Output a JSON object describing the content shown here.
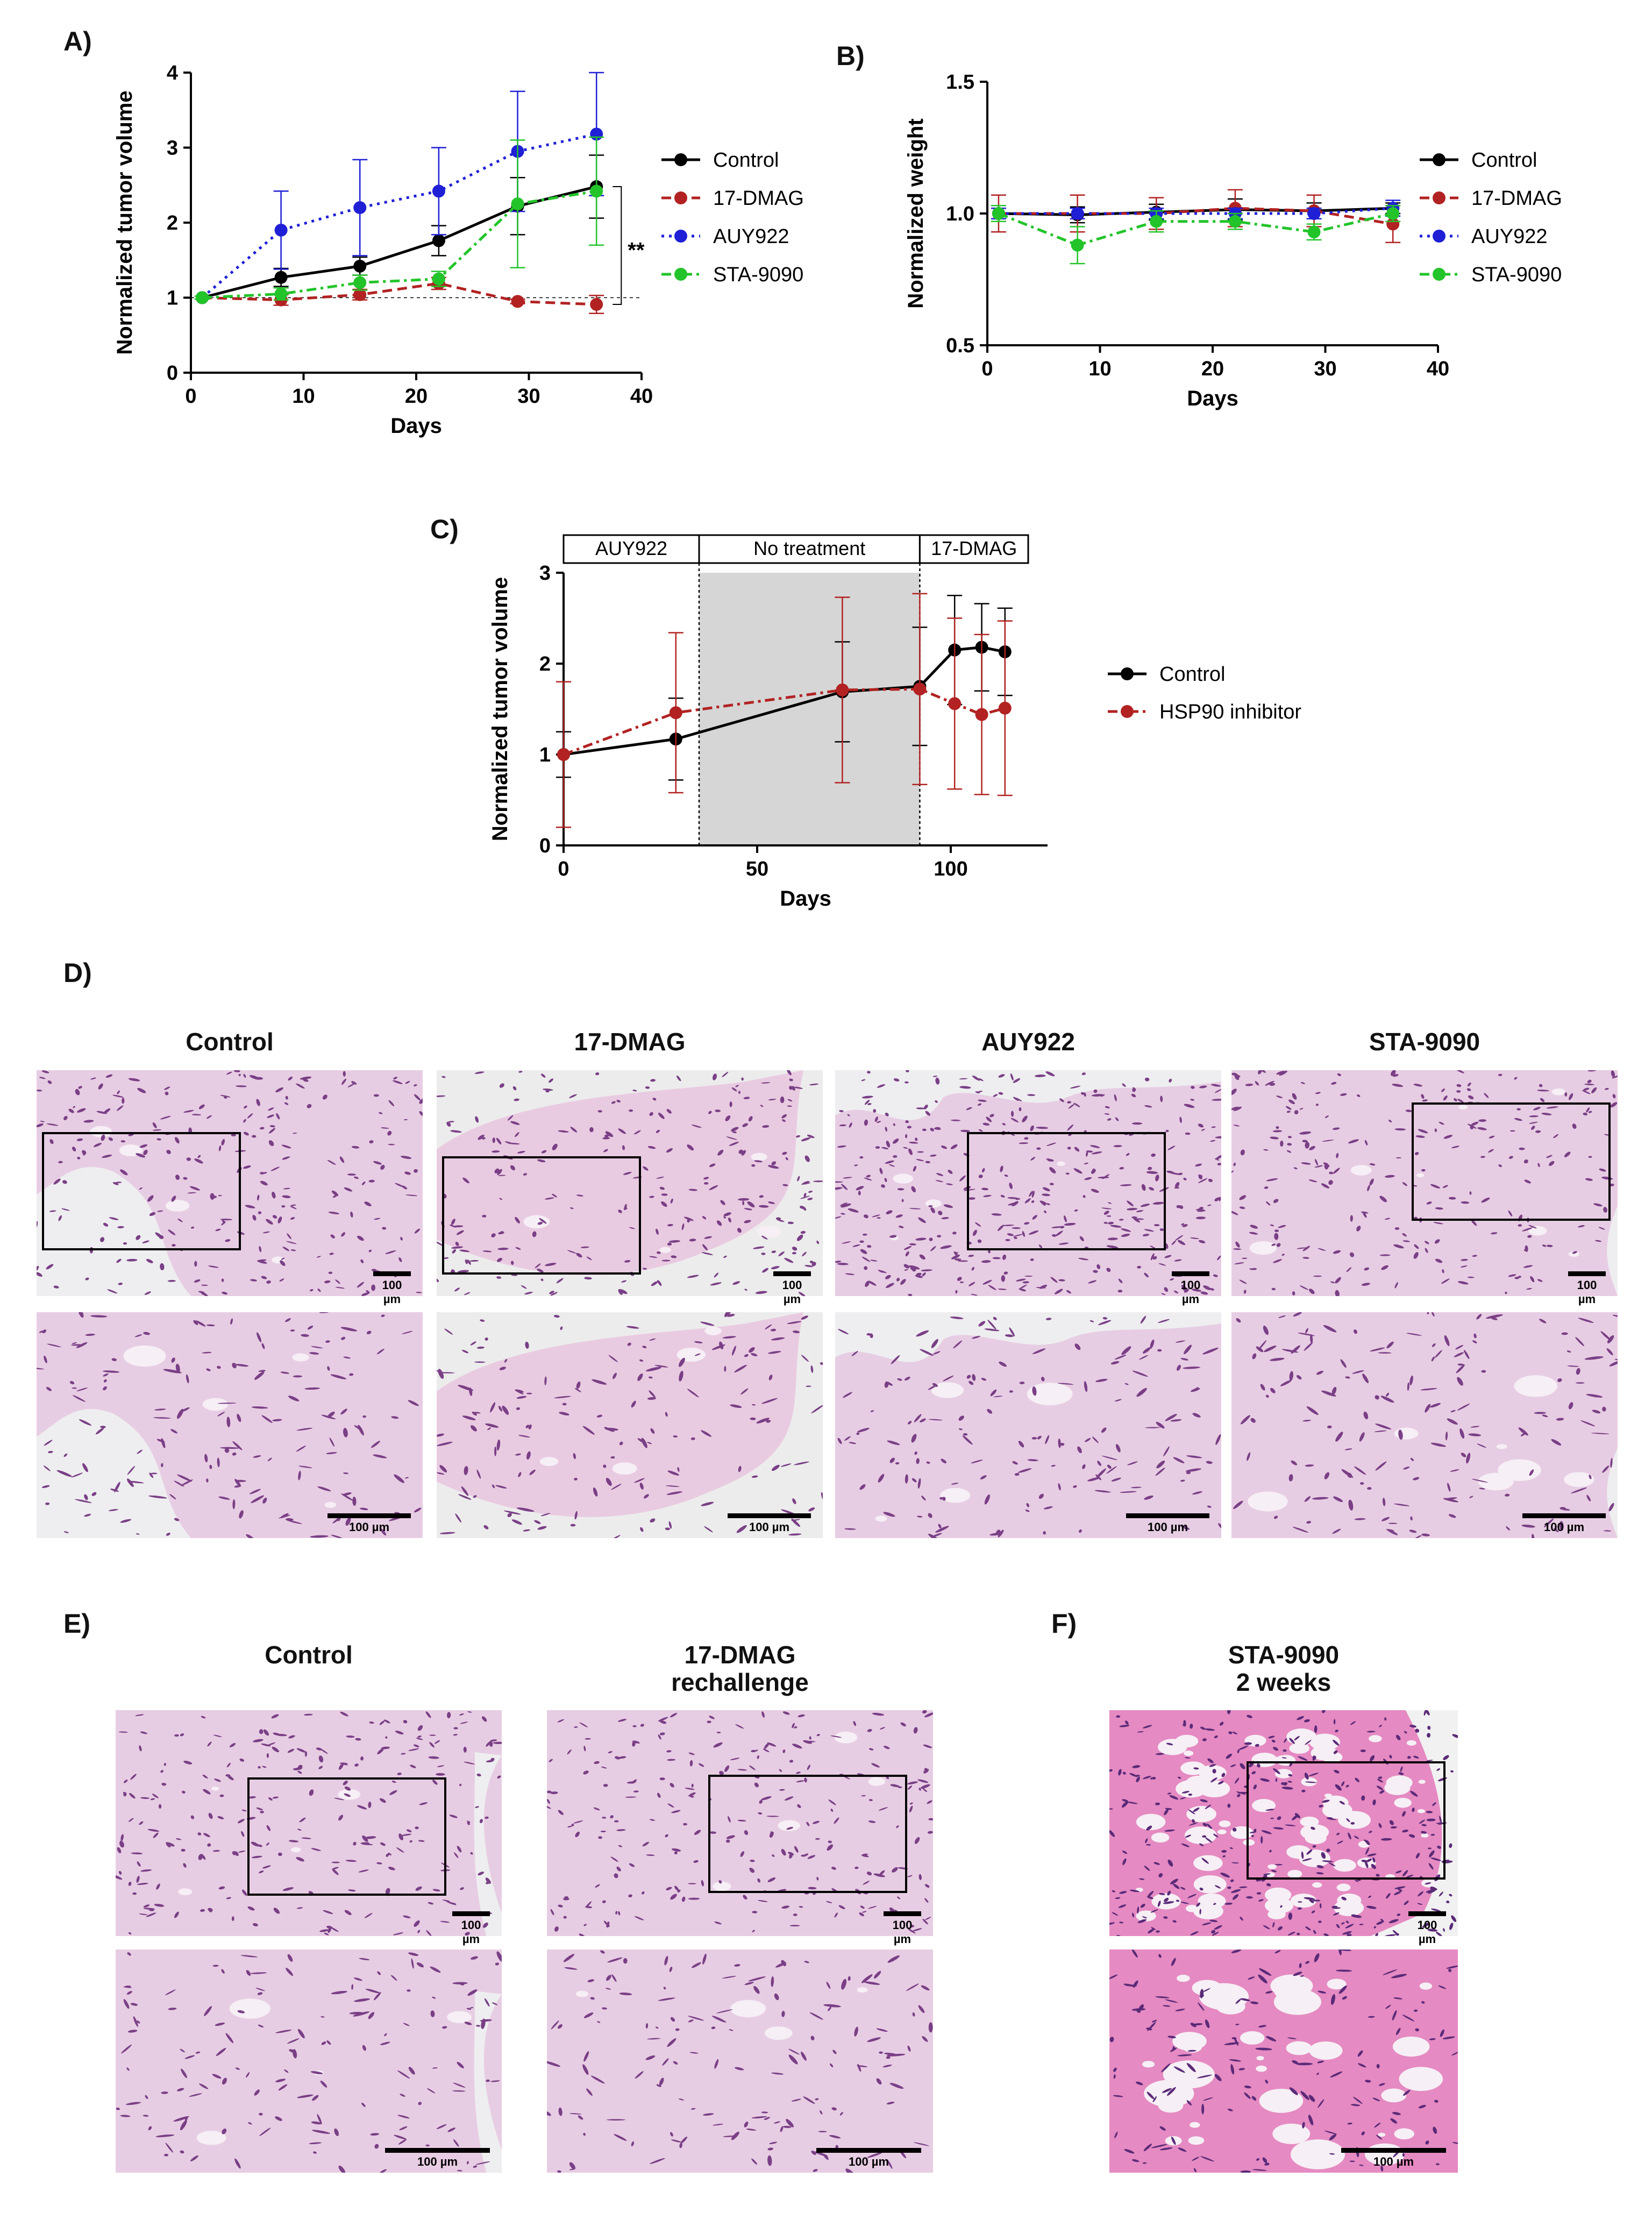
{
  "panels": {
    "A": "A)",
    "B": "B)",
    "C": "C)",
    "D": "D)",
    "E": "E)",
    "F": "F)"
  },
  "colors": {
    "control": "#000000",
    "dmag": "#b22222",
    "auy": "#1f1fd6",
    "sta": "#22c42a",
    "hsp90": "#b22222",
    "shade": "#d6d6d6"
  },
  "chart_data": [
    {
      "id": "A",
      "type": "line",
      "xlabel": "Days",
      "ylabel": "Normalized tumor volume",
      "xlim": [
        0,
        40
      ],
      "ylim": [
        0,
        4
      ],
      "xticks": [
        0,
        10,
        20,
        30,
        40
      ],
      "yticks": [
        0,
        1,
        2,
        3,
        4
      ],
      "reference_line_y": 1,
      "legend_position": "right",
      "significance": "**",
      "series": [
        {
          "name": "Control",
          "color": "#000000",
          "dash": "solid",
          "x": [
            1,
            8,
            15,
            22,
            29,
            36
          ],
          "y": [
            1.0,
            1.27,
            1.42,
            1.76,
            2.22,
            2.48
          ],
          "err": [
            0.02,
            0.12,
            0.12,
            0.2,
            0.38,
            0.42
          ]
        },
        {
          "name": "17-DMAG",
          "color": "#b22222",
          "dash": "dash",
          "x": [
            1,
            8,
            15,
            22,
            29,
            36
          ],
          "y": [
            1.0,
            0.97,
            1.04,
            1.19,
            0.95,
            0.91
          ],
          "err": [
            0.02,
            0.07,
            0.07,
            0.08,
            0.03,
            0.12
          ]
        },
        {
          "name": "AUY922",
          "color": "#1f1fd6",
          "dash": "dot",
          "x": [
            1,
            8,
            15,
            22,
            29,
            36
          ],
          "y": [
            1.0,
            1.9,
            2.2,
            2.42,
            2.95,
            3.18
          ],
          "err": [
            0.02,
            0.52,
            0.64,
            0.58,
            0.8,
            0.82
          ]
        },
        {
          "name": "STA-9090",
          "color": "#22c42a",
          "dash": "dashdot",
          "x": [
            1,
            8,
            15,
            22,
            29,
            36
          ],
          "y": [
            1.0,
            1.05,
            1.2,
            1.25,
            2.25,
            2.42
          ],
          "err": [
            0.02,
            0.08,
            0.1,
            0.1,
            0.85,
            0.72
          ]
        }
      ]
    },
    {
      "id": "B",
      "type": "line",
      "xlabel": "Days",
      "ylabel": "Normalized weight",
      "xlim": [
        0,
        40
      ],
      "ylim": [
        0.5,
        1.5
      ],
      "xticks": [
        0,
        10,
        20,
        30,
        40
      ],
      "yticks": [
        0.5,
        1.0,
        1.5
      ],
      "legend_position": "right",
      "series": [
        {
          "name": "Control",
          "color": "#000000",
          "dash": "solid",
          "x": [
            1,
            8,
            15,
            22,
            29,
            36
          ],
          "y": [
            1.0,
            0.995,
            1.005,
            1.015,
            1.01,
            1.02
          ],
          "err": [
            0.03,
            0.03,
            0.03,
            0.04,
            0.03,
            0.02
          ]
        },
        {
          "name": "17-DMAG",
          "color": "#b22222",
          "dash": "dash",
          "x": [
            1,
            8,
            15,
            22,
            29,
            36
          ],
          "y": [
            1.0,
            1.0,
            1.0,
            1.02,
            1.01,
            0.96
          ],
          "err": [
            0.07,
            0.07,
            0.06,
            0.07,
            0.06,
            0.07
          ]
        },
        {
          "name": "AUY922",
          "color": "#1f1fd6",
          "dash": "dot",
          "x": [
            1,
            8,
            15,
            22,
            29,
            36
          ],
          "y": [
            1.0,
            1.0,
            1.0,
            1.0,
            1.0,
            1.02
          ],
          "err": [
            0.02,
            0.02,
            0.02,
            0.02,
            0.02,
            0.03
          ]
        },
        {
          "name": "STA-9090",
          "color": "#22c42a",
          "dash": "dashdot",
          "x": [
            1,
            8,
            15,
            22,
            29,
            36
          ],
          "y": [
            1.0,
            0.88,
            0.97,
            0.97,
            0.93,
            1.0
          ],
          "err": [
            0.03,
            0.07,
            0.04,
            0.03,
            0.03,
            0.03
          ]
        }
      ]
    },
    {
      "id": "C",
      "type": "line",
      "xlabel": "Days",
      "ylabel": "Normalized tumor volume",
      "xlim": [
        0,
        125
      ],
      "ylim": [
        0,
        3
      ],
      "xticks": [
        0,
        50,
        100
      ],
      "yticks": [
        0,
        1,
        2,
        3
      ],
      "legend_position": "right",
      "phases": [
        {
          "label": "AUY922",
          "from": 0,
          "to": 35
        },
        {
          "label": "No treatment",
          "from": 35,
          "to": 92,
          "shaded": true
        },
        {
          "label": "17-DMAG",
          "from": 92,
          "to": 120
        }
      ],
      "series": [
        {
          "name": "Control",
          "color": "#000000",
          "dash": "solid",
          "x": [
            0,
            29,
            72,
            92,
            101,
            108,
            114
          ],
          "y": [
            1.0,
            1.17,
            1.69,
            1.75,
            2.15,
            2.18,
            2.13
          ],
          "err": [
            0.25,
            0.45,
            0.55,
            0.65,
            0.6,
            0.48,
            0.48
          ]
        },
        {
          "name": "HSP90 inhibitor",
          "color": "#b22222",
          "dash": "dashdot",
          "x": [
            0,
            29,
            72,
            92,
            101,
            108,
            114
          ],
          "y": [
            1.0,
            1.46,
            1.71,
            1.72,
            1.56,
            1.44,
            1.51
          ],
          "err": [
            0.8,
            0.88,
            1.02,
            1.05,
            0.94,
            0.88,
            0.96
          ]
        }
      ]
    }
  ],
  "histology": {
    "D": {
      "titles": [
        "Control",
        "17-DMAG",
        "AUY922",
        "STA-9090"
      ],
      "scale_label": "100 µm"
    },
    "E": {
      "titles": [
        "Control",
        "17-DMAG\nrechallenge"
      ],
      "scale_label": "100 µm"
    },
    "F": {
      "title": "STA-9090\n2 weeks",
      "scale_label": "100 µm"
    }
  }
}
